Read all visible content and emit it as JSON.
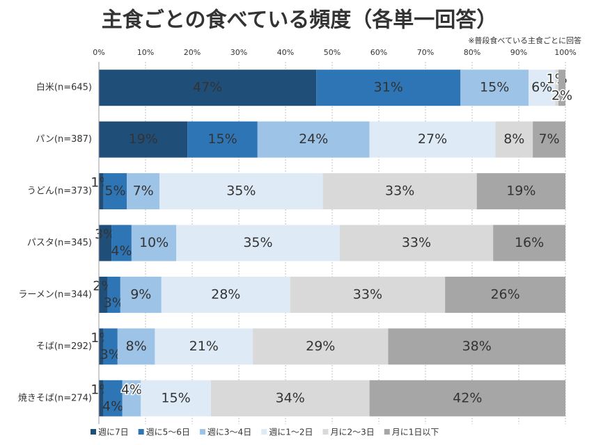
{
  "chart_data": {
    "type": "stacked-bar-horizontal",
    "title": "主食ごとの食べている頻度（各単一回答）",
    "note": "※普段食べている主食ごとに回答",
    "categories": [
      "白米(n=645)",
      "パン(n=387)",
      "うどん(n=373)",
      "パスタ(n=345)",
      "ラーメン(n=344)",
      "そば(n=292)",
      "焼きそば(n=274)"
    ],
    "series": [
      {
        "name": "週に7日",
        "color": "#1f4e79",
        "values": [
          46.6,
          19,
          1,
          2.7,
          1.9,
          1,
          1
        ],
        "value_labels": [
          "47%",
          "19%",
          "1%",
          "3%",
          "2%",
          "1%",
          "1%"
        ]
      },
      {
        "name": "週に5～6日",
        "color": "#2e75b6",
        "values": [
          30.9,
          15,
          5,
          4.3,
          2.7,
          3,
          4
        ],
        "value_labels": [
          "31%",
          "15%",
          "5%",
          "4%",
          "3%",
          "3%",
          "4%"
        ]
      },
      {
        "name": "週に3～4日",
        "color": "#9dc3e6",
        "values": [
          14.6,
          24,
          7,
          9.6,
          8.8,
          8,
          4
        ],
        "value_labels": [
          "15%",
          "24%",
          "7%",
          "10%",
          "9%",
          "8%",
          "4%"
        ]
      },
      {
        "name": "週に1～2日",
        "color": "#deebf7",
        "values": [
          5.7,
          27,
          35,
          35.0,
          27.6,
          21,
          15
        ],
        "value_labels": [
          "6%",
          "27%",
          "35%",
          "35%",
          "28%",
          "21%",
          "15%"
        ]
      },
      {
        "name": "月に2～3日",
        "color": "#d9d9d9",
        "values": [
          0.7,
          8,
          33,
          32.9,
          33.2,
          29,
          34
        ],
        "value_labels": [
          "1%",
          "8%",
          "33%",
          "33%",
          "33%",
          "29%",
          "34%"
        ]
      },
      {
        "name": "月に1日以下",
        "color": "#a6a6a6",
        "values": [
          1.5,
          7,
          19,
          15.5,
          25.8,
          38,
          42
        ],
        "value_labels": [
          "2%",
          "7%",
          "19%",
          "16%",
          "26%",
          "38%",
          "42%"
        ]
      }
    ],
    "xlim": [
      0,
      100
    ],
    "xticks": [
      {
        "value": 0,
        "label": "0%"
      },
      {
        "value": 10,
        "label": "10%"
      },
      {
        "value": 20,
        "label": "20%"
      },
      {
        "value": 30,
        "label": "30%"
      },
      {
        "value": 40,
        "label": "40%"
      },
      {
        "value": 50,
        "label": "50%"
      },
      {
        "value": 60,
        "label": "60%"
      },
      {
        "value": 70,
        "label": "70%"
      },
      {
        "value": 80,
        "label": "80%"
      },
      {
        "value": 90,
        "label": "90%"
      },
      {
        "value": 100,
        "label": "100%"
      }
    ],
    "grid": true
  }
}
